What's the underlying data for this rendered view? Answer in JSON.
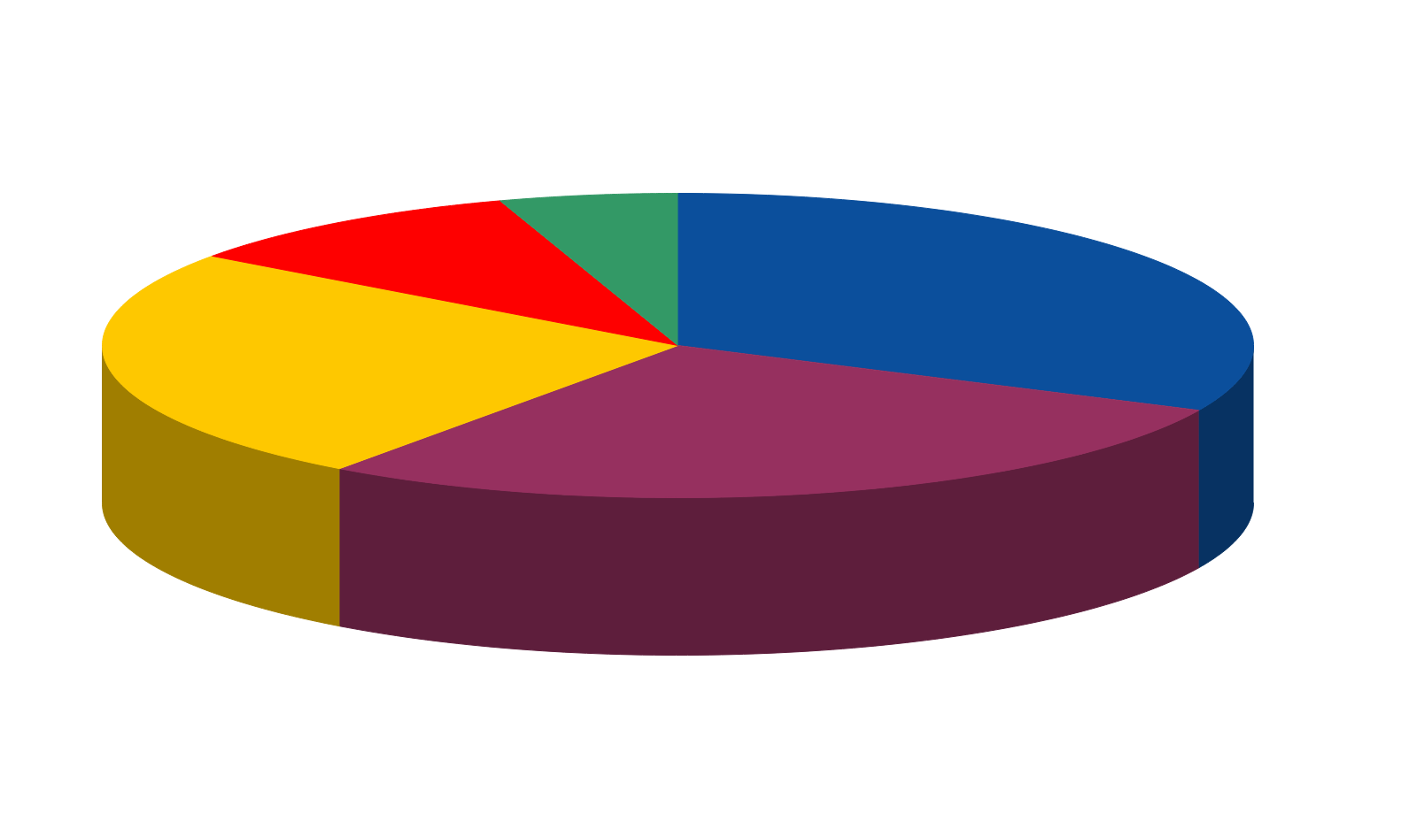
{
  "chart_data": {
    "type": "pie",
    "values": [
      32,
      28,
      25,
      10,
      5
    ],
    "colors": [
      "#0b4f9c",
      "#96305f",
      "#fec800",
      "#fe0000",
      "#339966"
    ]
  }
}
